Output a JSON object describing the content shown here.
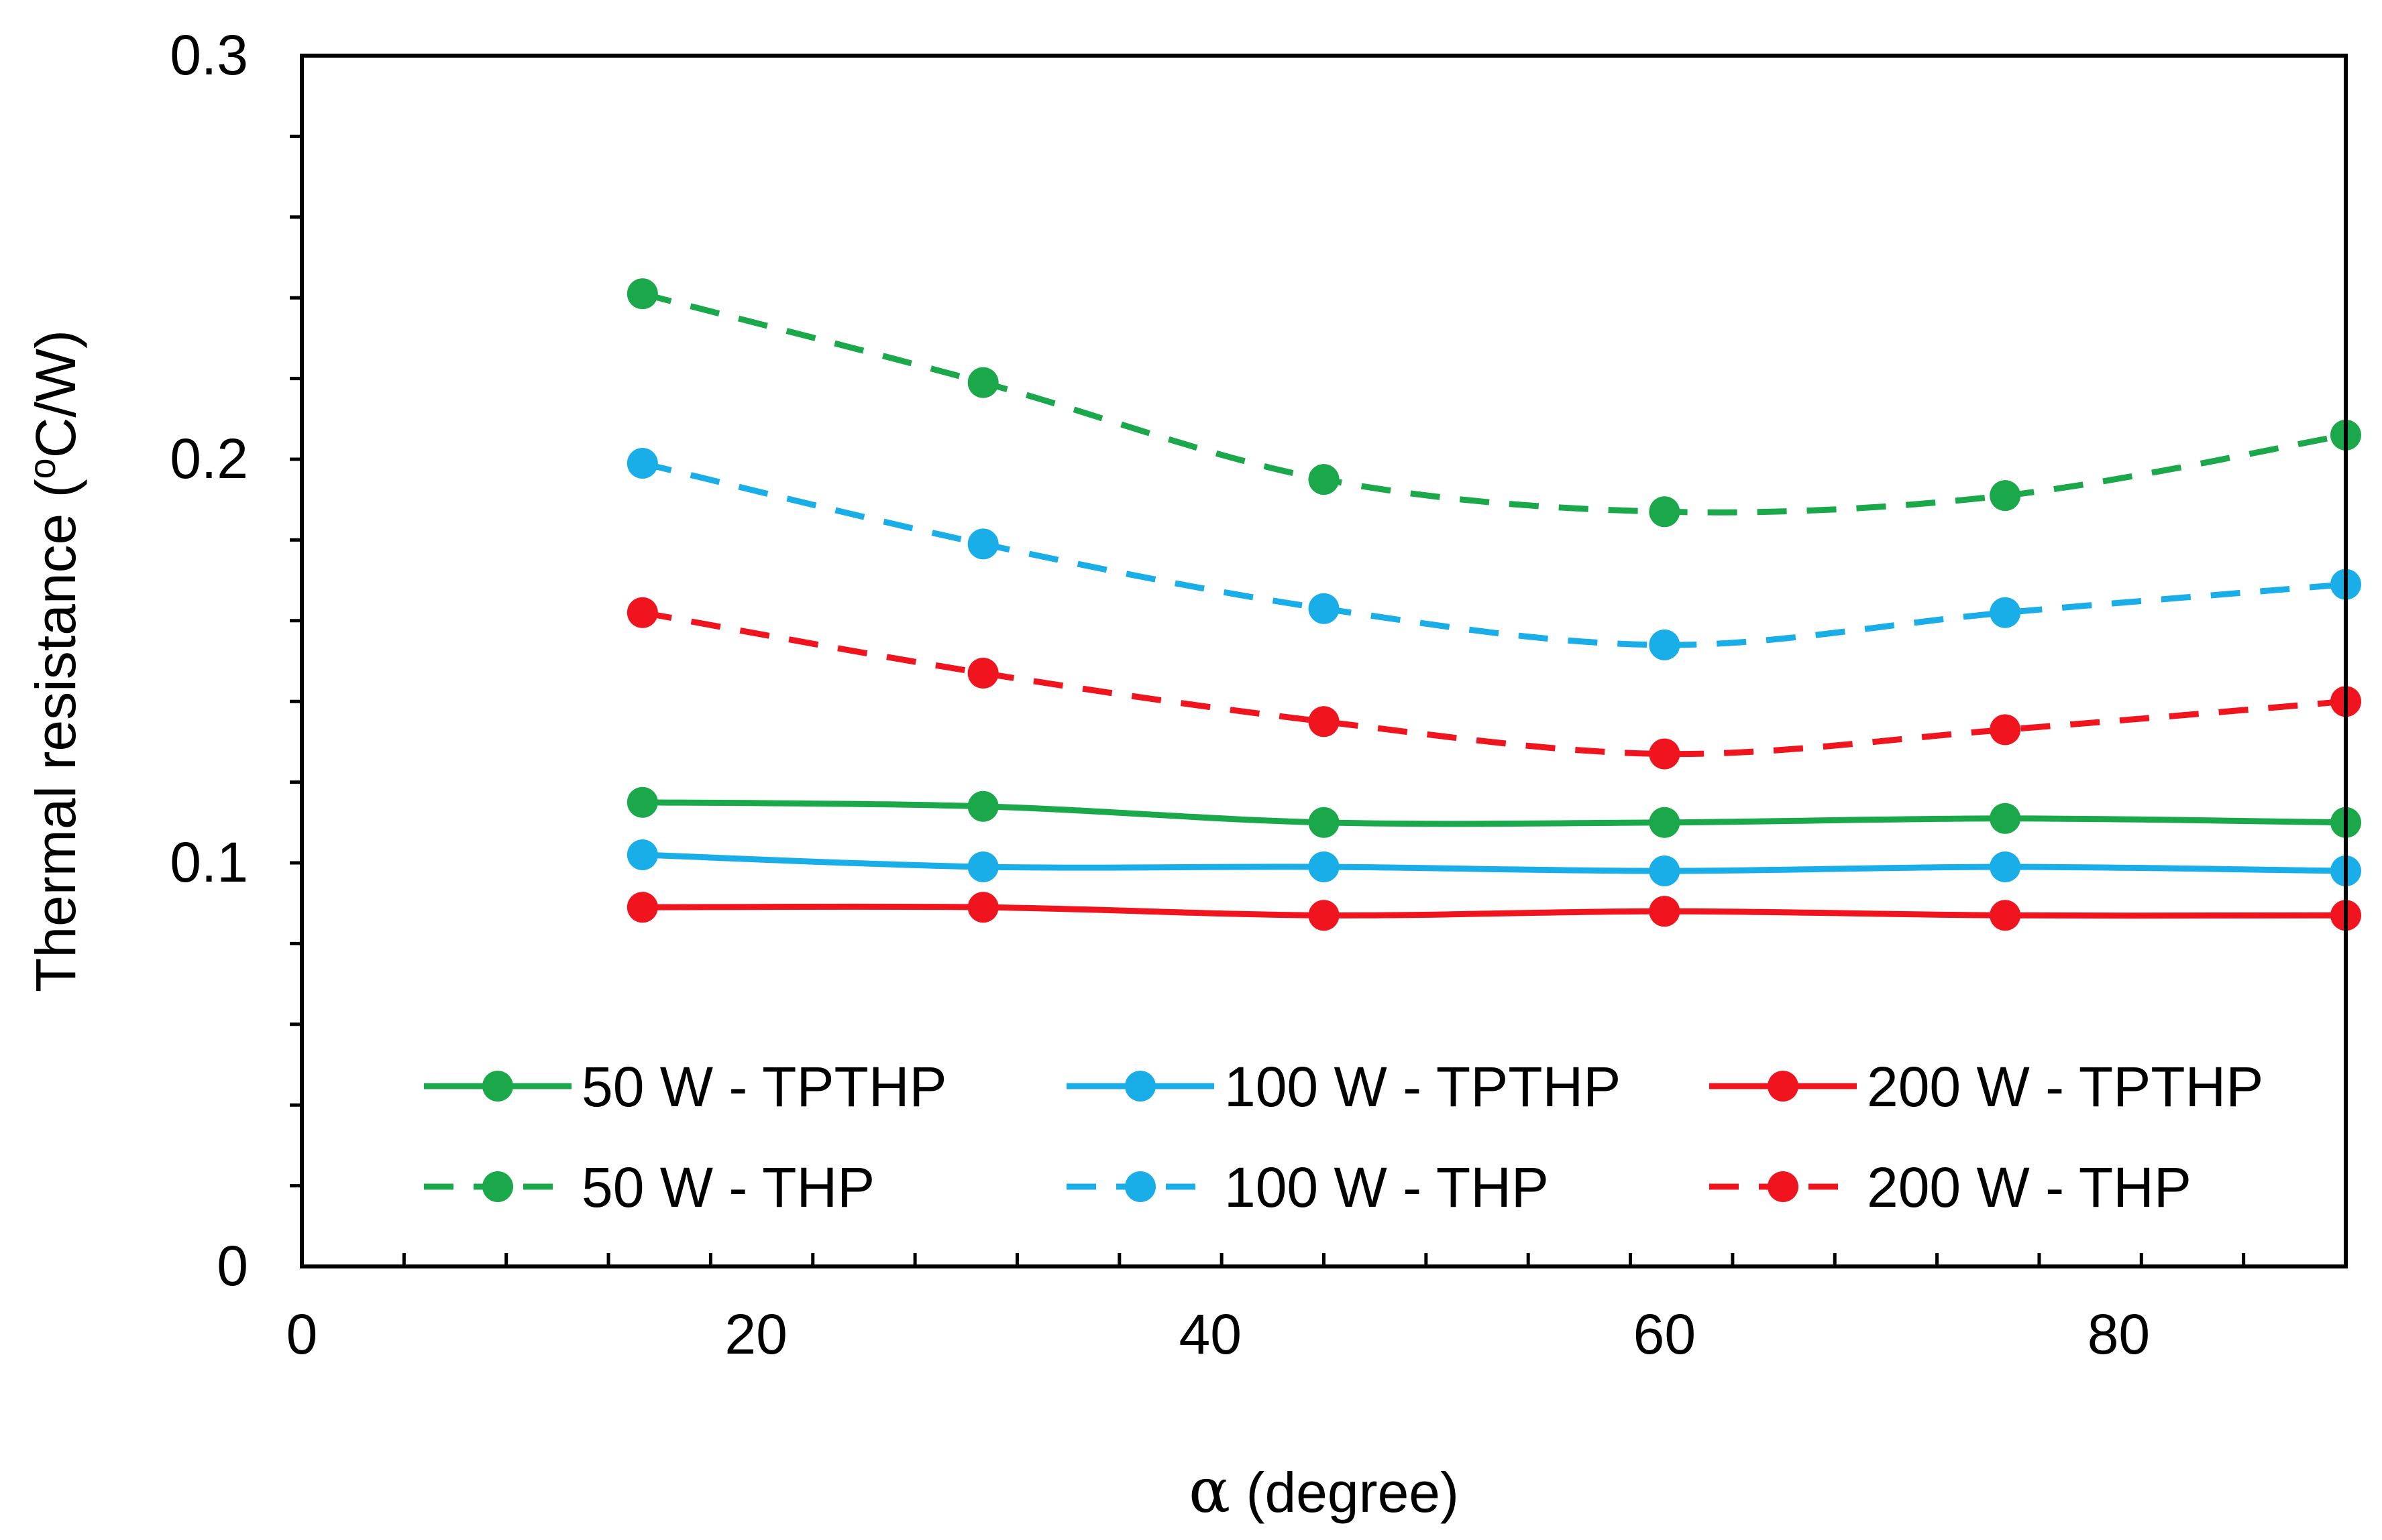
{
  "chart_data": {
    "type": "line",
    "title": "",
    "xlabel_symbol": "α",
    "xlabel_text": " (degree)",
    "ylabel_prefix": "Thermal resistance (",
    "ylabel_sup": "o",
    "ylabel_suffix": "C/W)",
    "xlim": [
      0,
      90
    ],
    "ylim": [
      0,
      0.3
    ],
    "x_ticks": [
      0,
      20,
      40,
      60,
      80
    ],
    "x_tick_labels": [
      "0",
      "20",
      "40",
      "60",
      "80"
    ],
    "y_ticks": [
      0,
      0.1,
      0.2,
      0.3
    ],
    "y_tick_labels": [
      "0",
      "0.1",
      "0.2",
      "0.3"
    ],
    "x": [
      15,
      30,
      45,
      60,
      75,
      90
    ],
    "series": [
      {
        "name": "50 W - TPTHP",
        "color": "#1aa84b",
        "style": "solid",
        "values": [
          0.115,
          0.114,
          0.11,
          0.11,
          0.111,
          0.11
        ]
      },
      {
        "name": "100 W - TPTHP",
        "color": "#1aaee8",
        "style": "solid",
        "values": [
          0.102,
          0.099,
          0.099,
          0.098,
          0.099,
          0.098
        ]
      },
      {
        "name": "200 W - TPTHP",
        "color": "#f0141e",
        "style": "solid",
        "values": [
          0.089,
          0.089,
          0.087,
          0.088,
          0.087,
          0.087
        ]
      },
      {
        "name": "50 W - THP",
        "color": "#1aa84b",
        "style": "dashed",
        "values": [
          0.241,
          0.219,
          0.195,
          0.187,
          0.191,
          0.206
        ]
      },
      {
        "name": "100 W - THP",
        "color": "#1aaee8",
        "style": "dashed",
        "values": [
          0.199,
          0.179,
          0.163,
          0.154,
          0.162,
          0.169
        ]
      },
      {
        "name": "200 W - THP",
        "color": "#f0141e",
        "style": "dashed",
        "values": [
          0.162,
          0.147,
          0.135,
          0.127,
          0.133,
          0.14
        ]
      }
    ],
    "legend_position": "lower-center, 3 columns",
    "grid": false
  }
}
